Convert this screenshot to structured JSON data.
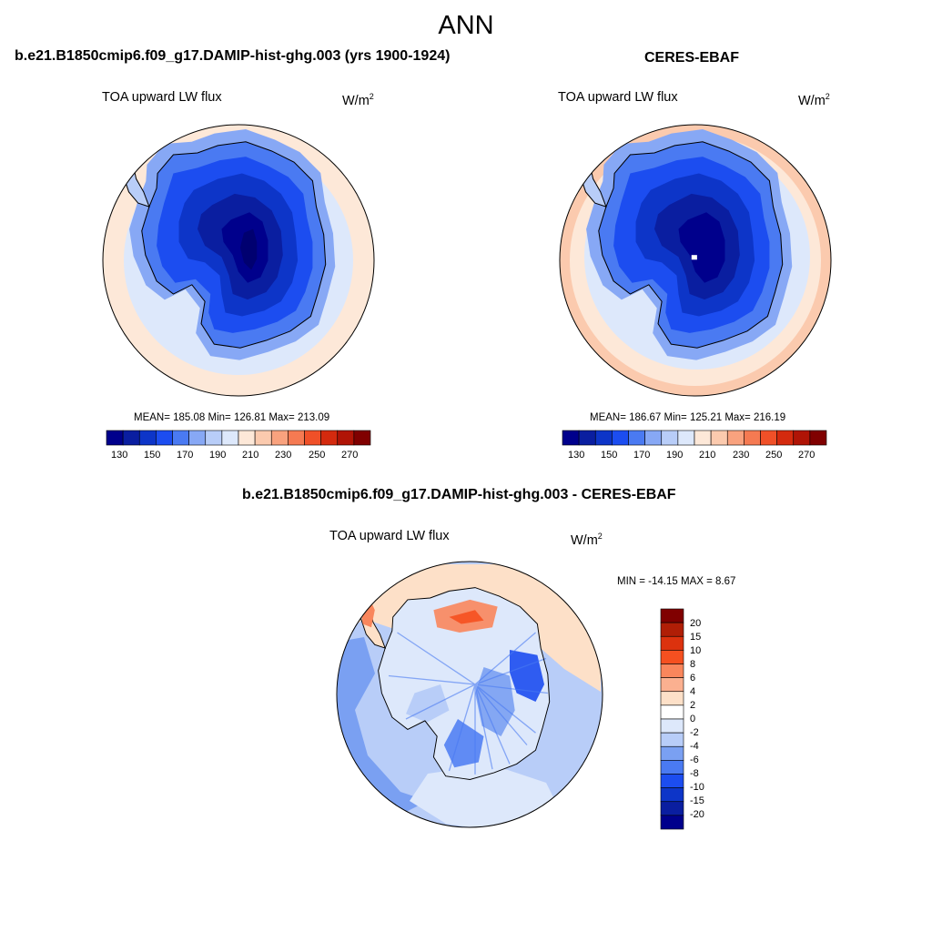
{
  "season": "ANN",
  "panels": [
    {
      "case_title": "b.e21.B1850cmip6.f09_g17.DAMIP-hist-ghg.003 (yrs 1900-1924)",
      "variable": "TOA upward LW flux",
      "units_base": "W/m",
      "units_exp": "2",
      "stats": "MEAN= 185.08  Min= 126.81  Max= 213.09",
      "colorbar_ticks": [
        "130",
        "150",
        "170",
        "190",
        "210",
        "230",
        "250",
        "270"
      ]
    },
    {
      "case_title": "CERES-EBAF",
      "variable": "TOA upward LW flux",
      "units_base": "W/m",
      "units_exp": "2",
      "stats": "MEAN= 186.67  Min= 125.21  Max= 216.19",
      "colorbar_ticks": [
        "130",
        "150",
        "170",
        "190",
        "210",
        "230",
        "250",
        "270"
      ]
    }
  ],
  "diff": {
    "case_title": "b.e21.B1850cmip6.f09_g17.DAMIP-hist-ghg.003 - CERES-EBAF",
    "variable": "TOA upward LW flux",
    "units_base": "W/m",
    "units_exp": "2",
    "stats": "MIN = -14.15 MAX =   8.67",
    "colorbar_ticks": [
      "20",
      "15",
      "10",
      "8",
      "6",
      "4",
      "2",
      "0",
      "-2",
      "-4",
      "-6",
      "-8",
      "-10",
      "-15",
      "-20"
    ]
  },
  "colors": {
    "abs_scale": [
      "#00008c",
      "#0a1ea0",
      "#0d35c8",
      "#1c4df0",
      "#4a7af2",
      "#87a8f5",
      "#b8cdf8",
      "#dde8fb",
      "#fde8d8",
      "#fbcaae",
      "#f9a27e",
      "#f57a52",
      "#f05028",
      "#d42a0e",
      "#b01406",
      "#800000"
    ],
    "diff_scale": [
      "#800000",
      "#b01e06",
      "#dc320e",
      "#f55020",
      "#f9865c",
      "#fbb090",
      "#fde0c8",
      "#ffffff",
      "#dde8fb",
      "#b8cdf8",
      "#7aa0f2",
      "#4a7af2",
      "#1c4df0",
      "#0d35c8",
      "#0a1ea0",
      "#00008c"
    ]
  }
}
